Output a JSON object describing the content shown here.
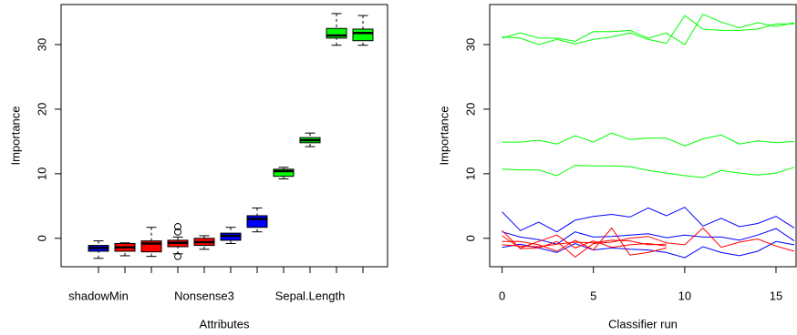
{
  "chart_data": [
    {
      "type": "box",
      "x_label": "Attributes",
      "y_label": "Importance",
      "categories": [
        "shadowMin",
        null,
        null,
        null,
        "Nonsense3",
        null,
        null,
        null,
        "Sepal.Length",
        null,
        null
      ],
      "colors": [
        "#0000ff",
        "#ff0000",
        "#ff0000",
        "#ff0000",
        "#ff0000",
        "#0000ff",
        "#0000ff",
        "#00ff00",
        "#00ff00",
        "#00ff00",
        "#00ff00"
      ],
      "boxes": [
        {
          "whisker_low": -3.1,
          "q1": -2.0,
          "median": -1.5,
          "q3": -1.1,
          "whisker_high": -0.4,
          "outliers": []
        },
        {
          "whisker_low": -2.7,
          "q1": -2.0,
          "median": -1.4,
          "q3": -0.8,
          "whisker_high": -0.7,
          "outliers": []
        },
        {
          "whisker_low": -2.8,
          "q1": -2.1,
          "median": -0.8,
          "q3": -0.4,
          "whisker_high": 1.7,
          "outliers": []
        },
        {
          "whisker_low": -2.4,
          "q1": -1.3,
          "median": -0.7,
          "q3": -0.3,
          "whisker_high": 0.2,
          "outliers": [
            1.8,
            1.0,
            -2.8
          ]
        },
        {
          "whisker_low": -1.7,
          "q1": -1.1,
          "median": -0.6,
          "q3": 0.0,
          "whisker_high": 0.4,
          "outliers": []
        },
        {
          "whisker_low": -0.8,
          "q1": -0.3,
          "median": 0.4,
          "q3": 0.8,
          "whisker_high": 1.7,
          "outliers": []
        },
        {
          "whisker_low": 1.0,
          "q1": 1.7,
          "median": 3.0,
          "q3": 3.5,
          "whisker_high": 4.7,
          "outliers": []
        },
        {
          "whisker_low": 9.2,
          "q1": 9.6,
          "median": 10.4,
          "q3": 10.7,
          "whisker_high": 11.0,
          "outliers": []
        },
        {
          "whisker_low": 14.2,
          "q1": 14.8,
          "median": 15.2,
          "q3": 15.6,
          "whisker_high": 16.3,
          "outliers": []
        },
        {
          "whisker_low": 29.9,
          "q1": 31.0,
          "median": 31.4,
          "q3": 32.5,
          "whisker_high": 34.8,
          "outliers": []
        },
        {
          "whisker_low": 29.9,
          "q1": 30.6,
          "median": 31.8,
          "q3": 32.4,
          "whisker_high": 34.5,
          "outliers": []
        }
      ],
      "ylim": [
        -4.4,
        36.2
      ],
      "yticks": [
        0,
        10,
        20,
        30
      ]
    },
    {
      "type": "line",
      "x_label": "Classifier run",
      "y_label": "Importance",
      "x": [
        0,
        1,
        2,
        3,
        4,
        5,
        6,
        7,
        8,
        9,
        10,
        11,
        12,
        13,
        14,
        15,
        16
      ],
      "series": [
        {
          "color": "#00ff00",
          "values": [
            31.2,
            31.0,
            30.0,
            30.8,
            30.1,
            30.8,
            31.2,
            31.8,
            30.8,
            30.2,
            34.5,
            32.4,
            32.2,
            32.2,
            32.4,
            33.2,
            33.2
          ]
        },
        {
          "color": "#00ff00",
          "values": [
            31.0,
            31.8,
            31.0,
            31.0,
            30.5,
            32.0,
            32.0,
            32.2,
            31.0,
            31.8,
            30.0,
            34.7,
            33.5,
            32.6,
            33.4,
            32.8,
            33.4
          ]
        },
        {
          "color": "#00ff00",
          "values": [
            14.9,
            14.9,
            15.2,
            14.6,
            15.9,
            14.9,
            16.3,
            15.3,
            15.5,
            15.5,
            14.3,
            15.4,
            16.0,
            14.6,
            15.1,
            14.8,
            15.0
          ]
        },
        {
          "color": "#00ff00",
          "values": [
            10.7,
            10.6,
            10.6,
            9.7,
            11.3,
            11.2,
            11.2,
            11.1,
            10.5,
            10.1,
            9.7,
            9.4,
            10.5,
            10.1,
            9.8,
            10.1,
            11.0
          ]
        },
        {
          "color": "#0000ff",
          "values": [
            4.1,
            1.2,
            2.5,
            1.0,
            2.8,
            3.4,
            3.7,
            3.3,
            4.7,
            3.5,
            4.8,
            1.9,
            3.1,
            1.8,
            2.3,
            3.4,
            1.6
          ]
        },
        {
          "color": "#0000ff",
          "values": [
            1.0,
            0.2,
            -0.2,
            -0.9,
            1.0,
            0.2,
            0.3,
            0.5,
            0.7,
            0.1,
            0.5,
            0.2,
            0.2,
            -0.3,
            0.5,
            1.5,
            -0.4
          ]
        },
        {
          "color": "#0000ff",
          "values": [
            -1.4,
            -0.9,
            -1.5,
            -2.2,
            -0.8,
            -1.8,
            -1.5,
            -1.7,
            -1.8,
            -2.2,
            -3.0,
            -1.3,
            -2.2,
            -2.7,
            -2.0,
            -0.5,
            -1.0
          ]
        },
        {
          "color": "#ff0000",
          "values": [
            1.2,
            -1.6,
            -1.5,
            -0.5,
            -2.9,
            -0.8,
            -0.6,
            0.0,
            0.3,
            -0.7,
            -1.0,
            1.6,
            -1.4,
            -0.6,
            -0.1,
            -1.2,
            -2.0
          ]
        },
        {
          "color": "#ff0000",
          "values": [
            -0.5,
            -0.5,
            -1.0,
            -2.0,
            -0.3,
            -1.8,
            1.6,
            -2.6,
            -2.2,
            -1.5,
            null,
            null,
            null,
            null,
            null,
            null,
            null
          ]
        },
        {
          "color": "#ff0000",
          "values": [
            0.4,
            -1.5,
            -0.5,
            0.5,
            -1.5,
            -0.4,
            -1.4,
            -1.0,
            -0.8,
            -1.2,
            null,
            null,
            null,
            null,
            null,
            null,
            null
          ]
        },
        {
          "color": "#ff0000",
          "values": [
            -1.0,
            -1.2,
            -1.3,
            -0.9,
            -0.6,
            -0.7,
            -0.3,
            -0.4,
            -1.0,
            -0.9,
            null,
            null,
            null,
            null,
            null,
            null,
            null
          ]
        }
      ],
      "xlim": [
        -0.68,
        16.1
      ],
      "ylim": [
        -4.4,
        36.2
      ],
      "xticks": [
        0,
        5,
        10,
        15
      ],
      "yticks": [
        0,
        10,
        20,
        30
      ]
    }
  ]
}
